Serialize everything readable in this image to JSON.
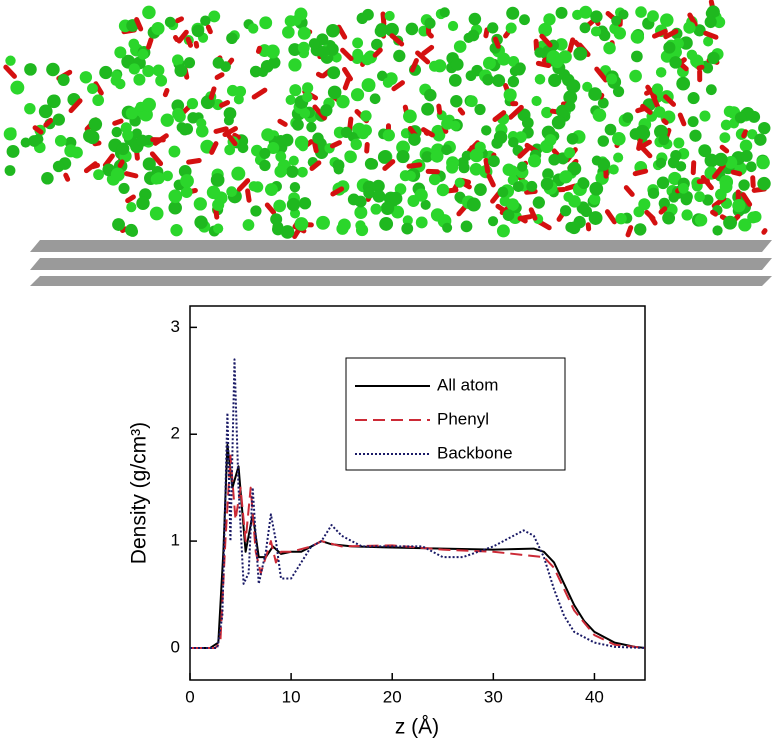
{
  "chart_data": {
    "type": "line",
    "xlabel": "z (Å)",
    "ylabel": "Density (g/cm³)",
    "xlim": [
      0,
      45
    ],
    "ylim": [
      -0.3,
      3.2
    ],
    "xticks": [
      0,
      10,
      20,
      30,
      40
    ],
    "yticks": [
      0,
      1,
      2,
      3
    ],
    "legend": "upper right",
    "series": [
      {
        "name": "All atom",
        "color": "#000000",
        "style": "solid",
        "x": [
          0,
          2,
          2.8,
          3.3,
          3.7,
          4.2,
          4.8,
          5.5,
          6.2,
          6.8,
          7.5,
          8.2,
          9,
          10,
          11,
          12,
          13,
          14,
          16,
          20,
          25,
          30,
          34,
          35,
          36,
          37,
          38,
          39,
          40,
          42,
          44,
          45
        ],
        "values": [
          0,
          0,
          0.05,
          0.9,
          1.9,
          1.5,
          1.7,
          0.9,
          1.25,
          0.85,
          0.85,
          0.95,
          0.88,
          0.9,
          0.9,
          0.95,
          1.0,
          0.97,
          0.95,
          0.94,
          0.93,
          0.92,
          0.93,
          0.9,
          0.8,
          0.6,
          0.4,
          0.25,
          0.15,
          0.05,
          0.01,
          0
        ]
      },
      {
        "name": "Phenyl",
        "color": "#cc2a36",
        "style": "dashed",
        "x": [
          0,
          2.5,
          3,
          3.5,
          4,
          4.5,
          5,
          5.5,
          6,
          6.5,
          7,
          7.5,
          8,
          8.5,
          9,
          10,
          12,
          13,
          15,
          20,
          25,
          30,
          35,
          36,
          37,
          38,
          40,
          42,
          45
        ],
        "values": [
          0,
          0,
          0.05,
          1.0,
          1.8,
          1.2,
          1.5,
          1.0,
          1.5,
          0.9,
          0.7,
          0.85,
          1.0,
          0.8,
          0.9,
          0.9,
          0.95,
          1.0,
          0.95,
          0.96,
          0.92,
          0.9,
          0.85,
          0.75,
          0.55,
          0.35,
          0.12,
          0.03,
          0
        ]
      },
      {
        "name": "Backbone",
        "color": "#1a1a66",
        "style": "dotted",
        "x": [
          0,
          2.7,
          3.2,
          3.7,
          4,
          4.4,
          4.8,
          5.3,
          5.8,
          6.2,
          6.8,
          7.5,
          8,
          8.5,
          9,
          10,
          11,
          12,
          13,
          14,
          15,
          17,
          20,
          23,
          25,
          27,
          30,
          32,
          33,
          34,
          35,
          36,
          37,
          38,
          40,
          42,
          45
        ],
        "values": [
          0,
          0,
          0.3,
          2.2,
          1.0,
          2.7,
          1.5,
          0.6,
          0.7,
          1.5,
          0.6,
          0.9,
          1.25,
          1.0,
          0.65,
          0.65,
          0.8,
          0.95,
          1.0,
          1.15,
          1.05,
          0.95,
          0.95,
          0.95,
          0.85,
          0.85,
          0.95,
          1.05,
          1.1,
          1.05,
          0.85,
          0.55,
          0.3,
          0.15,
          0.05,
          0.01,
          0
        ]
      }
    ]
  }
}
